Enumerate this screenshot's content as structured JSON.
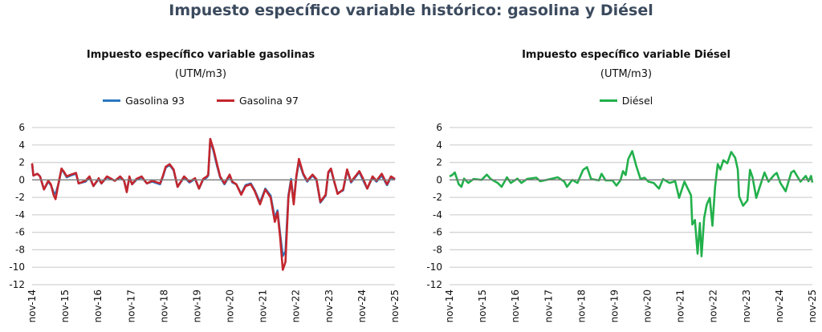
{
  "title": "Impuesto específico variable histórico: gasolina y Diésel",
  "colors": {
    "g93": "#2b78c2",
    "g97": "#c3262e",
    "diesel": "#22b04b",
    "grid": "#d4d4d4",
    "zero": "#7a7a7a"
  },
  "chart_data": [
    {
      "type": "line",
      "title": "Impuesto específico variable gasolinas",
      "ylabel": "(UTM/m3)",
      "legend": "top",
      "ylim": [
        -12,
        6
      ],
      "yticks": [
        "6",
        "4",
        "2",
        "0",
        "-2",
        "-4",
        "-6",
        "-8",
        "-10",
        "-12"
      ],
      "ytick_values": [
        6,
        4,
        2,
        0,
        -2,
        -4,
        -6,
        -8,
        -10,
        -12
      ],
      "xlim": [
        0,
        11
      ],
      "xticks": [
        "nov-14",
        "nov-15",
        "nov-16",
        "nov-17",
        "nov-18",
        "nov-19",
        "nov-20",
        "nov-21",
        "nov-22",
        "nov-23",
        "nov-24",
        "nov-25"
      ],
      "x_units": "years since nov-14",
      "x": [
        0,
        0.04,
        0.16,
        0.24,
        0.36,
        0.49,
        0.57,
        0.65,
        0.71,
        0.81,
        0.89,
        0.97,
        1.05,
        1.17,
        1.33,
        1.41,
        1.62,
        1.74,
        1.86,
        2.02,
        2.1,
        2.27,
        2.51,
        2.67,
        2.79,
        2.87,
        2.95,
        3.03,
        3.16,
        3.32,
        3.48,
        3.64,
        3.88,
        3.96,
        4.05,
        4.17,
        4.29,
        4.41,
        4.61,
        4.77,
        4.94,
        5.06,
        5.18,
        5.3,
        5.34,
        5.4,
        5.5,
        5.6,
        5.7,
        5.83,
        5.99,
        6.07,
        6.19,
        6.34,
        6.47,
        6.63,
        6.75,
        6.91,
        7.07,
        7.23,
        7.36,
        7.44,
        7.52,
        7.6,
        7.68,
        7.77,
        7.85,
        7.93,
        8.01,
        8.09,
        8.22,
        8.34,
        8.5,
        8.62,
        8.74,
        8.9,
        8.98,
        9.06,
        9.14,
        9.26,
        9.43,
        9.55,
        9.67,
        9.84,
        9.92,
        10.04,
        10.16,
        10.32,
        10.44,
        10.6,
        10.76,
        10.88,
        11.0
      ],
      "series": [
        {
          "name": "Gasolina 93",
          "color_key": "g93",
          "values": [
            1.8,
            0.5,
            0.7,
            0.4,
            -1.1,
            -0.2,
            -0.6,
            -1.4,
            -1.6,
            -0.3,
            1.2,
            0.8,
            0.3,
            0.5,
            0.7,
            -0.4,
            -0.2,
            0.3,
            -0.7,
            0.1,
            -0.4,
            0.3,
            -0.1,
            0.3,
            -0.1,
            -1.3,
            0.3,
            -0.5,
            0.0,
            0.3,
            -0.4,
            -0.2,
            -0.5,
            0.3,
            1.4,
            1.7,
            1.1,
            -0.8,
            0.3,
            -0.3,
            0.1,
            -1.0,
            0.0,
            0.3,
            0.5,
            4.5,
            3.3,
            1.7,
            0.3,
            -0.5,
            0.5,
            -0.3,
            -0.5,
            -1.6,
            -0.6,
            -0.4,
            -1.2,
            -2.6,
            -1.0,
            -1.8,
            -4.4,
            -3.5,
            -6.2,
            -8.7,
            -8.2,
            -1.8,
            0.1,
            -2.6,
            0.3,
            2.1,
            0.6,
            -0.2,
            0.5,
            0.0,
            -2.6,
            -1.8,
            0.8,
            1.2,
            0.0,
            -1.5,
            -1.2,
            1.1,
            -0.3,
            0.5,
            0.9,
            -0.1,
            -1.0,
            0.3,
            -0.2,
            0.5,
            -0.6,
            0.3,
            0.0
          ]
        },
        {
          "name": "Gasolina 97",
          "color_key": "g97",
          "values": [
            1.9,
            0.5,
            0.7,
            0.4,
            -1.1,
            -0.1,
            -0.5,
            -1.7,
            -2.2,
            -0.2,
            1.3,
            0.9,
            0.4,
            0.6,
            0.8,
            -0.4,
            -0.1,
            0.4,
            -0.7,
            0.2,
            -0.4,
            0.4,
            -0.1,
            0.4,
            -0.1,
            -1.4,
            0.4,
            -0.5,
            0.1,
            0.4,
            -0.4,
            -0.1,
            -0.4,
            0.4,
            1.5,
            1.8,
            1.2,
            -0.8,
            0.4,
            -0.2,
            0.2,
            -1.0,
            0.1,
            0.4,
            0.6,
            4.7,
            3.5,
            1.9,
            0.4,
            -0.4,
            0.6,
            -0.2,
            -0.5,
            -1.7,
            -0.7,
            -0.5,
            -1.3,
            -2.8,
            -1.1,
            -2.0,
            -4.8,
            -3.7,
            -6.6,
            -10.3,
            -9.4,
            -2.0,
            -0.1,
            -2.8,
            0.4,
            2.4,
            0.7,
            -0.1,
            0.6,
            0.1,
            -2.5,
            -1.7,
            0.9,
            1.3,
            0.1,
            -1.6,
            -1.1,
            1.2,
            -0.2,
            0.6,
            1.0,
            0.1,
            -1.0,
            0.4,
            -0.1,
            0.7,
            -0.5,
            0.4,
            0.1
          ]
        }
      ]
    },
    {
      "type": "line",
      "title": "Impuesto específico variable Diésel",
      "ylabel": "(UTM/m3)",
      "legend": "top",
      "ylim": [
        -12,
        6
      ],
      "yticks": [
        "6",
        "4",
        "2",
        "0",
        "-2",
        "-4",
        "-6",
        "-8",
        "-10",
        "-12"
      ],
      "ytick_values": [
        6,
        4,
        2,
        0,
        -2,
        -4,
        -6,
        -8,
        -10,
        -12
      ],
      "xlim": [
        0,
        11
      ],
      "xticks": [
        "nov-14",
        "nov-15",
        "nov-16",
        "nov-17",
        "nov-18",
        "nov-19",
        "nov-20",
        "nov-21",
        "nov-22",
        "nov-23",
        "nov-24",
        "nov-25"
      ],
      "x_units": "years since nov-14",
      "x": [
        0,
        0.08,
        0.16,
        0.28,
        0.36,
        0.44,
        0.57,
        0.73,
        0.97,
        1.13,
        1.25,
        1.46,
        1.58,
        1.74,
        1.86,
        2.06,
        2.18,
        2.35,
        2.63,
        2.75,
        3.07,
        3.28,
        3.48,
        3.56,
        3.72,
        3.88,
        4.05,
        4.17,
        4.29,
        4.53,
        4.61,
        4.73,
        4.94,
        5.06,
        5.18,
        5.26,
        5.34,
        5.42,
        5.54,
        5.66,
        5.79,
        5.91,
        6.03,
        6.19,
        6.35,
        6.47,
        6.67,
        6.84,
        6.96,
        7.12,
        7.32,
        7.36,
        7.44,
        7.52,
        7.59,
        7.64,
        7.72,
        7.8,
        7.89,
        7.97,
        8.05,
        8.13,
        8.21,
        8.3,
        8.42,
        8.54,
        8.66,
        8.74,
        8.78,
        8.9,
        9.03,
        9.11,
        9.19,
        9.3,
        9.39,
        9.55,
        9.67,
        9.84,
        9.92,
        10.03,
        10.19,
        10.36,
        10.44,
        10.64,
        10.8,
        10.88,
        10.96,
        11.0
      ],
      "series": [
        {
          "name": "Diésel",
          "color_key": "diesel",
          "values": [
            0.4,
            0.55,
            0.85,
            -0.5,
            -0.8,
            0.15,
            -0.35,
            0.1,
            0,
            0.6,
            0.1,
            -0.35,
            -0.8,
            0.3,
            -0.35,
            0.15,
            -0.35,
            0.1,
            0.25,
            -0.15,
            0.1,
            0.3,
            -0.2,
            -0.8,
            0,
            -0.35,
            1.15,
            1.45,
            0.1,
            -0.05,
            0.7,
            -0.05,
            -0.05,
            -0.65,
            -0.05,
            1.0,
            0.55,
            2.4,
            3.3,
            1.6,
            0.1,
            0.25,
            -0.2,
            -0.35,
            -1.0,
            0.1,
            -0.35,
            -0.15,
            -2.05,
            -0.2,
            -1.75,
            -5.1,
            -4.6,
            -8.45,
            -4.95,
            -8.75,
            -4.35,
            -2.8,
            -2.05,
            -5.25,
            -0.8,
            1.8,
            1.2,
            2.25,
            1.9,
            3.2,
            2.55,
            1.2,
            -1.9,
            -2.95,
            -2.35,
            1.15,
            0.25,
            -2.05,
            -1.0,
            0.85,
            -0.2,
            0.55,
            0.8,
            -0.35,
            -1.3,
            0.85,
            1.05,
            -0.2,
            0.45,
            -0.15,
            0.45,
            -0.3
          ]
        }
      ]
    }
  ]
}
